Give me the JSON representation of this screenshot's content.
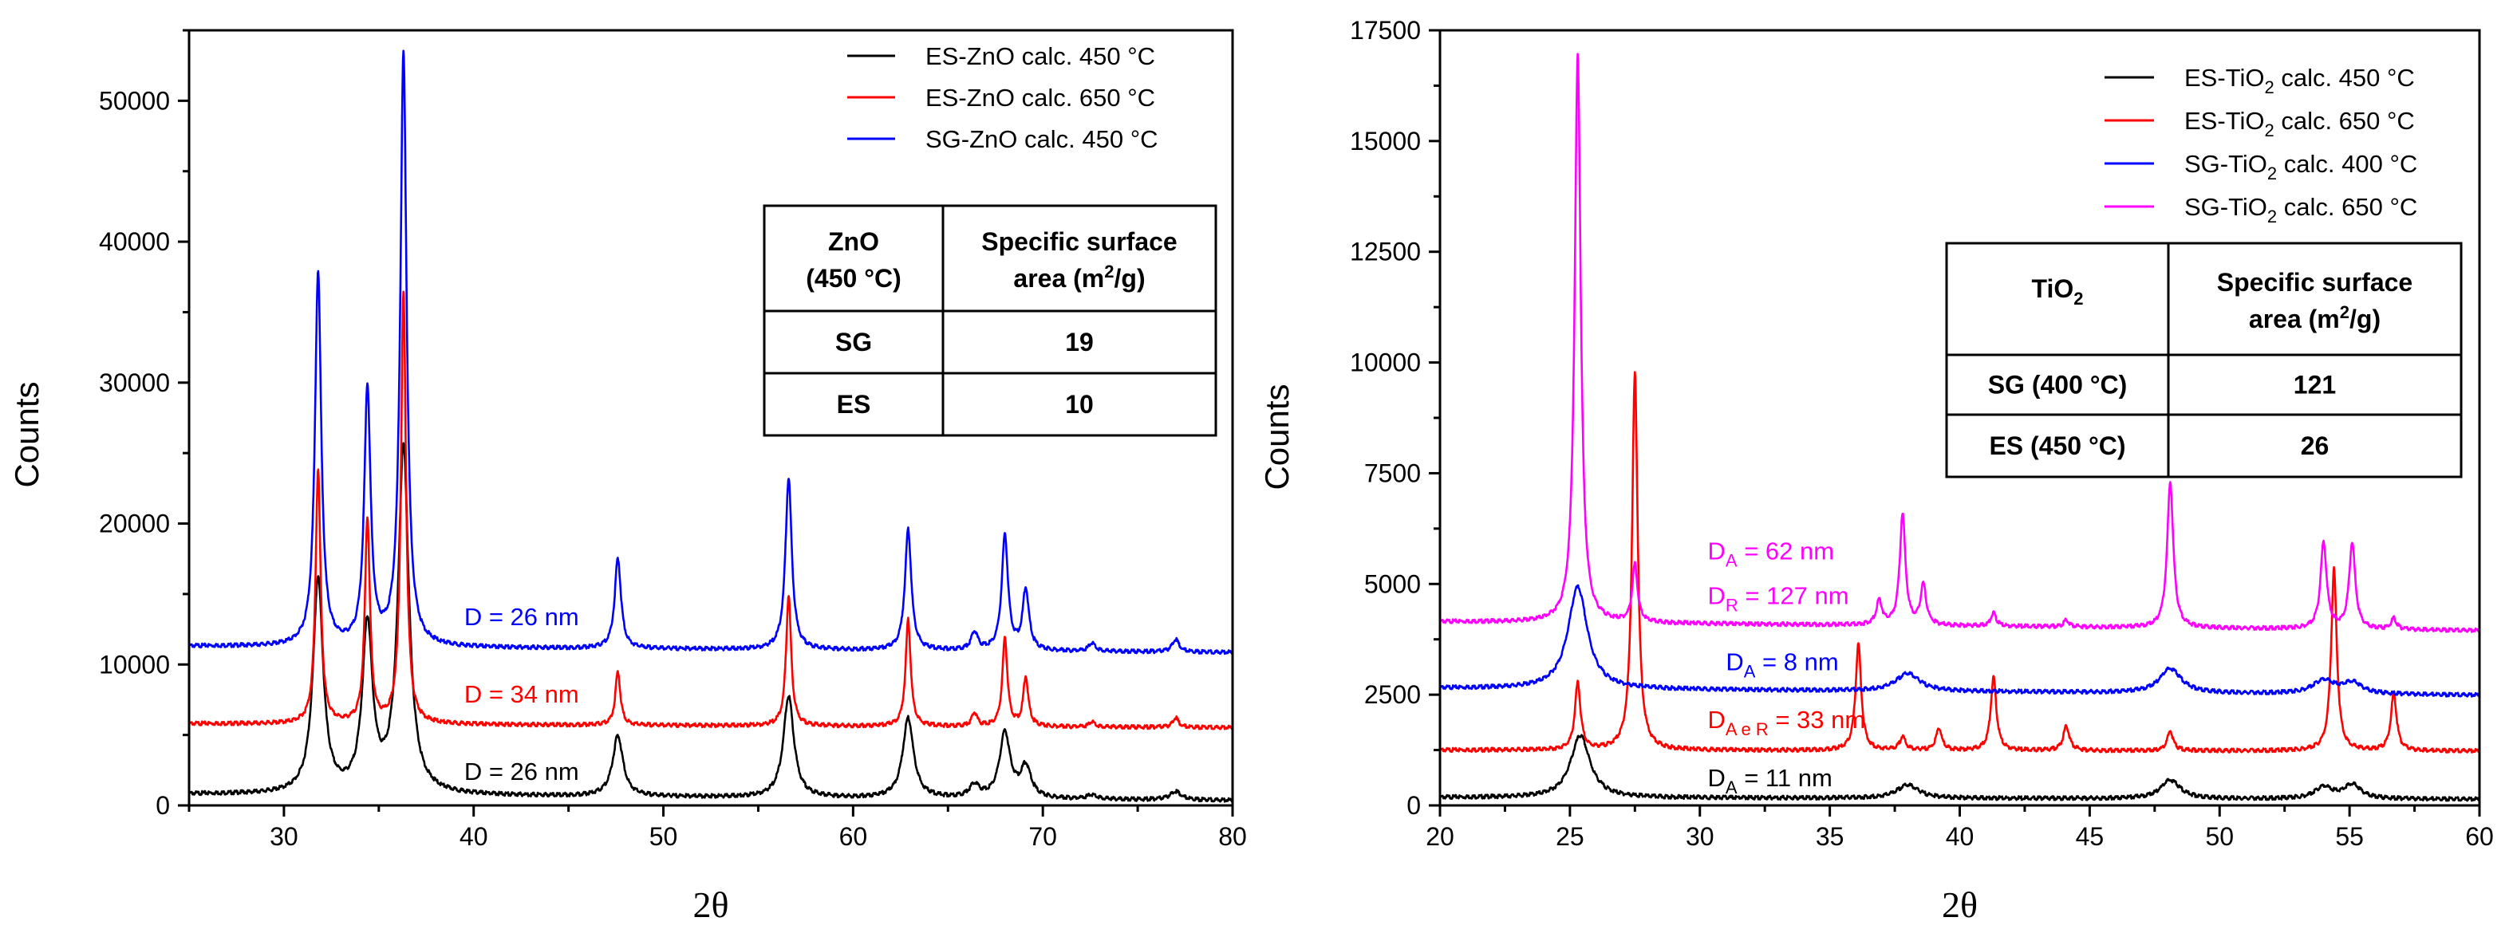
{
  "chart_data": [
    {
      "type": "line",
      "xlabel": "2θ",
      "ylabel": "Counts",
      "xlim": [
        25,
        80
      ],
      "ylim": [
        0,
        55000
      ],
      "xticks": [
        30,
        40,
        50,
        60,
        70,
        80
      ],
      "yticks": [
        0,
        10000,
        20000,
        30000,
        40000,
        50000
      ],
      "legend": [
        "ES-ZnO calc. 450 °C",
        "ES-ZnO calc. 650 °C",
        "SG-ZnO calc. 450 °C"
      ],
      "legend_position": "top-right",
      "series": [
        {
          "name": "ES-ZnO calc. 450 °C",
          "color": "#000000",
          "baseline": 800,
          "slope": -8,
          "peaks": [
            [
              31.8,
              15200,
              0.32
            ],
            [
              34.4,
              11800,
              0.32
            ],
            [
              36.3,
              24500,
              0.34
            ],
            [
              47.6,
              4300,
              0.33
            ],
            [
              56.6,
              7200,
              0.33
            ],
            [
              62.9,
              5700,
              0.34
            ],
            [
              66.4,
              900,
              0.3
            ],
            [
              68.0,
              4600,
              0.34
            ],
            [
              69.1,
              2200,
              0.33
            ],
            [
              72.6,
              300,
              0.3
            ],
            [
              77.0,
              600,
              0.35
            ]
          ]
        },
        {
          "name": "ES-ZnO calc. 650 °C",
          "color": "#ff0000",
          "baseline": 5800,
          "slope": -5,
          "peaks": [
            [
              31.8,
              18000,
              0.16
            ],
            [
              34.4,
              14500,
              0.16
            ],
            [
              36.3,
              30500,
              0.16
            ],
            [
              47.6,
              3800,
              0.16
            ],
            [
              56.6,
              9300,
              0.16
            ],
            [
              62.9,
              7600,
              0.16
            ],
            [
              66.4,
              1000,
              0.16
            ],
            [
              68.0,
              6200,
              0.16
            ],
            [
              69.1,
              3500,
              0.16
            ],
            [
              72.6,
              400,
              0.16
            ],
            [
              77.0,
              700,
              0.18
            ]
          ]
        },
        {
          "name": "SG-ZnO calc. 450 °C",
          "color": "#0000ff",
          "baseline": 11300,
          "slope": -8,
          "peaks": [
            [
              31.8,
              26500,
              0.2
            ],
            [
              34.4,
              18200,
              0.2
            ],
            [
              36.3,
              42000,
              0.2
            ],
            [
              47.6,
              6400,
              0.2
            ],
            [
              56.6,
              12200,
              0.2
            ],
            [
              62.9,
              8600,
              0.2
            ],
            [
              66.4,
              1300,
              0.2
            ],
            [
              68.0,
              8100,
              0.2
            ],
            [
              69.1,
              4300,
              0.2
            ],
            [
              72.6,
              600,
              0.2
            ],
            [
              77.0,
              900,
              0.22
            ]
          ]
        }
      ],
      "annotations": [
        {
          "text": "D = 26 nm",
          "color": "#0000ff",
          "x": 39.5,
          "y": 12800
        },
        {
          "text": "D = 34 nm",
          "color": "#ff0000",
          "x": 39.5,
          "y": 7300
        },
        {
          "text": "D = 26 nm",
          "color": "#000000",
          "x": 39.5,
          "y": 1800
        }
      ],
      "table": {
        "header": [
          "ZnO",
          "(450 °C)",
          "Specific surface",
          "area (m",
          "2",
          "/g)"
        ],
        "rows": [
          [
            "SG",
            "19"
          ],
          [
            "ES",
            "10"
          ]
        ]
      }
    },
    {
      "type": "line",
      "xlabel": "2θ",
      "ylabel": "Counts",
      "xlim": [
        20,
        60
      ],
      "ylim": [
        0,
        17500
      ],
      "xticks": [
        20,
        25,
        30,
        35,
        40,
        45,
        50,
        55,
        60
      ],
      "yticks": [
        0,
        2500,
        5000,
        7500,
        10000,
        12500,
        15000,
        17500
      ],
      "legend": [
        {
          "pre": "ES-TiO",
          "sub": "2",
          "post": " calc. 450 °C"
        },
        {
          "pre": "ES-TiO",
          "sub": "2",
          "post": " calc. 650 °C"
        },
        {
          "pre": "SG-TiO",
          "sub": "2",
          "post": " calc. 400 °C"
        },
        {
          "pre": "SG-TiO",
          "sub": "2",
          "post": " calc. 650 °C"
        }
      ],
      "legend_position": "top-right",
      "series": [
        {
          "name": "ES-TiO2 calc. 450 °C",
          "color": "#000000",
          "baseline": 180,
          "slope": -1,
          "peaks": [
            [
              25.4,
              1400,
              0.45
            ],
            [
              38.0,
              300,
              0.5
            ],
            [
              48.1,
              420,
              0.45
            ],
            [
              54.0,
              260,
              0.4
            ],
            [
              55.1,
              320,
              0.4
            ]
          ]
        },
        {
          "name": "ES-TiO2 calc. 650 °C",
          "color": "#ff0000",
          "baseline": 1250,
          "slope": -0.5,
          "peaks": [
            [
              25.3,
              1500,
              0.13
            ],
            [
              27.5,
              8500,
              0.13
            ],
            [
              36.1,
              2400,
              0.13
            ],
            [
              37.8,
              300,
              0.13
            ],
            [
              39.2,
              500,
              0.13
            ],
            [
              41.3,
              1650,
              0.13
            ],
            [
              44.1,
              550,
              0.14
            ],
            [
              48.1,
              450,
              0.13
            ],
            [
              54.4,
              4100,
              0.13
            ],
            [
              56.7,
              1300,
              0.13
            ]
          ]
        },
        {
          "name": "SG-TiO2 calc. 400 °C",
          "color": "#0000ff",
          "baseline": 2650,
          "slope": -4,
          "peaks": [
            [
              25.3,
              2300,
              0.45
            ],
            [
              38.0,
              400,
              0.55
            ],
            [
              48.1,
              550,
              0.5
            ],
            [
              54.0,
              300,
              0.5
            ],
            [
              55.1,
              250,
              0.45
            ]
          ]
        },
        {
          "name": "SG-TiO2 calc. 650 °C",
          "color": "#ff00ff",
          "baseline": 4150,
          "slope": -5,
          "peaks": [
            [
              25.3,
              12800,
              0.14
            ],
            [
              27.5,
              1300,
              0.12
            ],
            [
              36.9,
              550,
              0.13
            ],
            [
              37.8,
              2500,
              0.13
            ],
            [
              38.6,
              900,
              0.13
            ],
            [
              41.3,
              300,
              0.12
            ],
            [
              44.1,
              150,
              0.12
            ],
            [
              48.1,
              3300,
              0.14
            ],
            [
              54.0,
              1950,
              0.14
            ],
            [
              55.1,
              1950,
              0.14
            ],
            [
              56.7,
              250,
              0.12
            ]
          ]
        }
      ],
      "annotations": [
        {
          "pre": "D",
          "sub": "A",
          "post": " = 62 nm",
          "color": "#ff00ff",
          "x": 30.3,
          "y": 5550
        },
        {
          "pre": "D",
          "sub": "R",
          "post": " = 127 nm",
          "color": "#ff00ff",
          "x": 30.3,
          "y": 4550
        },
        {
          "pre": "D",
          "sub": "A",
          "post": " = 8 nm",
          "color": "#0000ff",
          "x": 31.0,
          "y": 3050
        },
        {
          "pre": "D",
          "sub": "A e R",
          "post": " = 33 nm",
          "color": "#ff0000",
          "x": 30.3,
          "y": 1750
        },
        {
          "pre": "D",
          "sub": "A",
          "post": " = 11 nm",
          "color": "#000000",
          "x": 30.3,
          "y": 430
        }
      ],
      "table": {
        "header": [
          "TiO",
          "2",
          "Specific surface",
          "area (m",
          "2",
          "/g)"
        ],
        "rows": [
          [
            "SG (400 °C)",
            "121"
          ],
          [
            "ES (450 °C)",
            "26"
          ]
        ]
      }
    }
  ]
}
